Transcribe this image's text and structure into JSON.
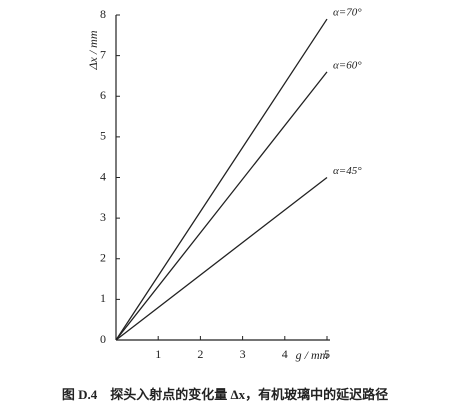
{
  "chart_data": {
    "type": "line",
    "caption": "图 D.4　探头入射点的变化量 Δx，有机玻璃中的延迟路径",
    "xlabel": "g / mm",
    "ylabel": "Δx / mm",
    "x": [
      0,
      5
    ],
    "series": [
      {
        "name": "α=70°",
        "color": "#222222",
        "values": [
          0,
          7.9
        ]
      },
      {
        "name": "α=60°",
        "color": "#222222",
        "values": [
          0,
          6.6
        ]
      },
      {
        "name": "α=45°",
        "color": "#222222",
        "values": [
          0,
          4.0
        ]
      }
    ],
    "xlim": [
      0,
      5
    ],
    "xticks": [
      1,
      2,
      3,
      4,
      5
    ],
    "ylim": [
      0,
      8
    ],
    "yticks": [
      0,
      1,
      2,
      3,
      4,
      5,
      6,
      7,
      8
    ]
  }
}
